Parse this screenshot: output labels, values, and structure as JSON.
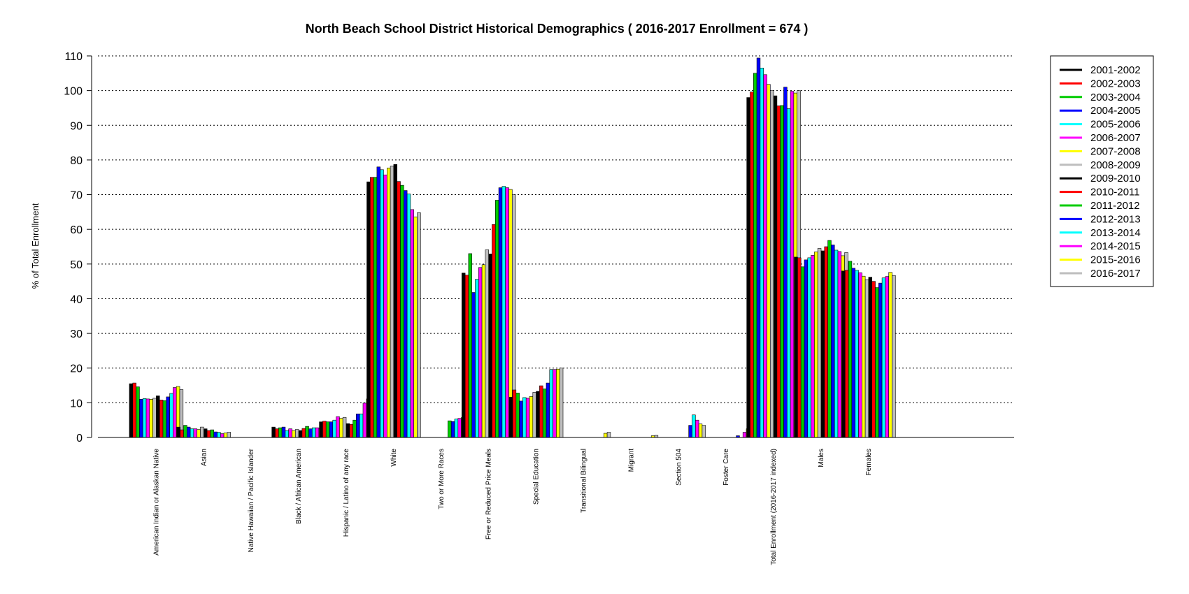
{
  "chart_data": {
    "type": "bar",
    "title": "North Beach School District Historical Demographics  ( 2016-2017 Enrollment =  674 )",
    "ylabel": "% of Total Enrollment",
    "xlabel": "",
    "ylim": [
      0,
      110
    ],
    "yticks": [
      "0",
      "10",
      "20",
      "30",
      "40",
      "50",
      "60",
      "70",
      "80",
      "90",
      "100",
      "110"
    ],
    "grid": true,
    "legend_position": "right",
    "categories": [
      "American Indian or Alaskan Native",
      "Asian",
      "Native Hawaiian / Pacific Islander",
      "Black / African American",
      "Hispanic / Latino of any race",
      "White",
      "Two or More Races",
      "Free or Reduced Price Meals",
      "Special Education",
      "Transitional Bilingual",
      "Migrant",
      "Section 504",
      "Foster Care",
      "Total Enrollment (2016-2017 indexed)",
      "Males",
      "Females"
    ],
    "series": [
      {
        "name": "2001-2002",
        "color": "#000000",
        "values": [
          15.5,
          3.0,
          0.0,
          3.0,
          4.5,
          73.7,
          0,
          47.4,
          11.6,
          0,
          0,
          0,
          0,
          98.0,
          52.0,
          48.0
        ]
      },
      {
        "name": "2002-2003",
        "color": "#ff0000",
        "values": [
          15.7,
          2.2,
          0.0,
          2.5,
          4.7,
          75.0,
          0,
          46.8,
          13.7,
          0,
          0,
          0,
          0,
          99.6,
          51.8,
          48.2
        ]
      },
      {
        "name": "2003-2004",
        "color": "#00cc00",
        "values": [
          14.6,
          3.5,
          0.0,
          2.8,
          4.5,
          75.0,
          0,
          53.0,
          12.8,
          0,
          0,
          0,
          0,
          105.0,
          49.2,
          50.8
        ]
      },
      {
        "name": "2004-2005",
        "color": "#0000ff",
        "values": [
          11.0,
          3.0,
          0.0,
          3.0,
          4.5,
          78.0,
          0,
          41.8,
          10.5,
          0,
          0,
          0,
          0,
          109.4,
          51.2,
          48.8
        ]
      },
      {
        "name": "2005-2006",
        "color": "#00ffff",
        "values": [
          11.2,
          2.5,
          0.0,
          2.0,
          5.0,
          77.2,
          0,
          45.6,
          11.5,
          0,
          0,
          0,
          0,
          106.5,
          51.8,
          48.2
        ]
      },
      {
        "name": "2006-2007",
        "color": "#ff00ff",
        "values": [
          11.1,
          2.5,
          0.0,
          2.5,
          6.0,
          75.7,
          0,
          49.0,
          11.3,
          0,
          0,
          0,
          0,
          104.6,
          52.5,
          47.5
        ]
      },
      {
        "name": "2007-2008",
        "color": "#ffff00",
        "values": [
          11.0,
          2.3,
          0.0,
          2.0,
          5.5,
          77.7,
          0,
          49.8,
          11.8,
          0,
          0,
          0,
          0,
          101.8,
          53.5,
          46.5
        ]
      },
      {
        "name": "2008-2009",
        "color": "#bebebe",
        "values": [
          11.3,
          3.0,
          0.0,
          2.3,
          5.8,
          78.2,
          0,
          54.1,
          13.0,
          0,
          0,
          0,
          0,
          100.0,
          54.5,
          45.5
        ]
      },
      {
        "name": "2009-2010",
        "color": "#000000",
        "values": [
          12.0,
          2.5,
          0.0,
          2.0,
          4.0,
          78.7,
          0,
          52.9,
          13.3,
          0,
          0,
          0,
          0,
          98.5,
          53.8,
          46.2
        ]
      },
      {
        "name": "2010-2011",
        "color": "#ff0000",
        "values": [
          10.8,
          2.0,
          0.0,
          2.6,
          3.8,
          73.8,
          0,
          61.4,
          14.9,
          0,
          0,
          0,
          0,
          95.6,
          55.0,
          45.0
        ]
      },
      {
        "name": "2011-2012",
        "color": "#00cc00",
        "values": [
          10.6,
          2.2,
          0.0,
          3.2,
          5.0,
          72.7,
          4.8,
          68.4,
          14.0,
          0,
          0,
          0,
          0,
          95.7,
          56.8,
          43.2
        ]
      },
      {
        "name": "2012-2013",
        "color": "#0000ff",
        "values": [
          11.7,
          1.6,
          0.0,
          2.5,
          6.8,
          71.2,
          4.6,
          72.0,
          15.7,
          0,
          0,
          3.5,
          0.5,
          101.0,
          55.5,
          44.5
        ]
      },
      {
        "name": "2013-2014",
        "color": "#00ffff",
        "values": [
          12.7,
          1.5,
          0.0,
          2.8,
          6.8,
          70.2,
          5.3,
          72.4,
          19.6,
          0,
          0,
          6.5,
          0,
          94.8,
          54.0,
          46.0
        ]
      },
      {
        "name": "2014-2015",
        "color": "#ff00ff",
        "values": [
          14.4,
          1.1,
          0.0,
          2.8,
          9.9,
          65.7,
          5.5,
          72.0,
          19.6,
          0,
          0,
          5.0,
          1.5,
          99.8,
          53.6,
          46.4
        ]
      },
      {
        "name": "2015-2016",
        "color": "#ffff00",
        "values": [
          14.7,
          1.3,
          0.0,
          2.5,
          11.1,
          63.6,
          5.8,
          71.5,
          19.7,
          1.2,
          0.5,
          3.9,
          2.5,
          99.3,
          52.4,
          47.6
        ]
      },
      {
        "name": "2016-2017",
        "color": "#bebebe",
        "values": [
          13.8,
          1.5,
          0.2,
          2.0,
          10.4,
          64.8,
          7.0,
          70.0,
          20.0,
          1.5,
          0.6,
          3.5,
          2.0,
          100.0,
          53.3,
          46.7
        ]
      }
    ]
  }
}
